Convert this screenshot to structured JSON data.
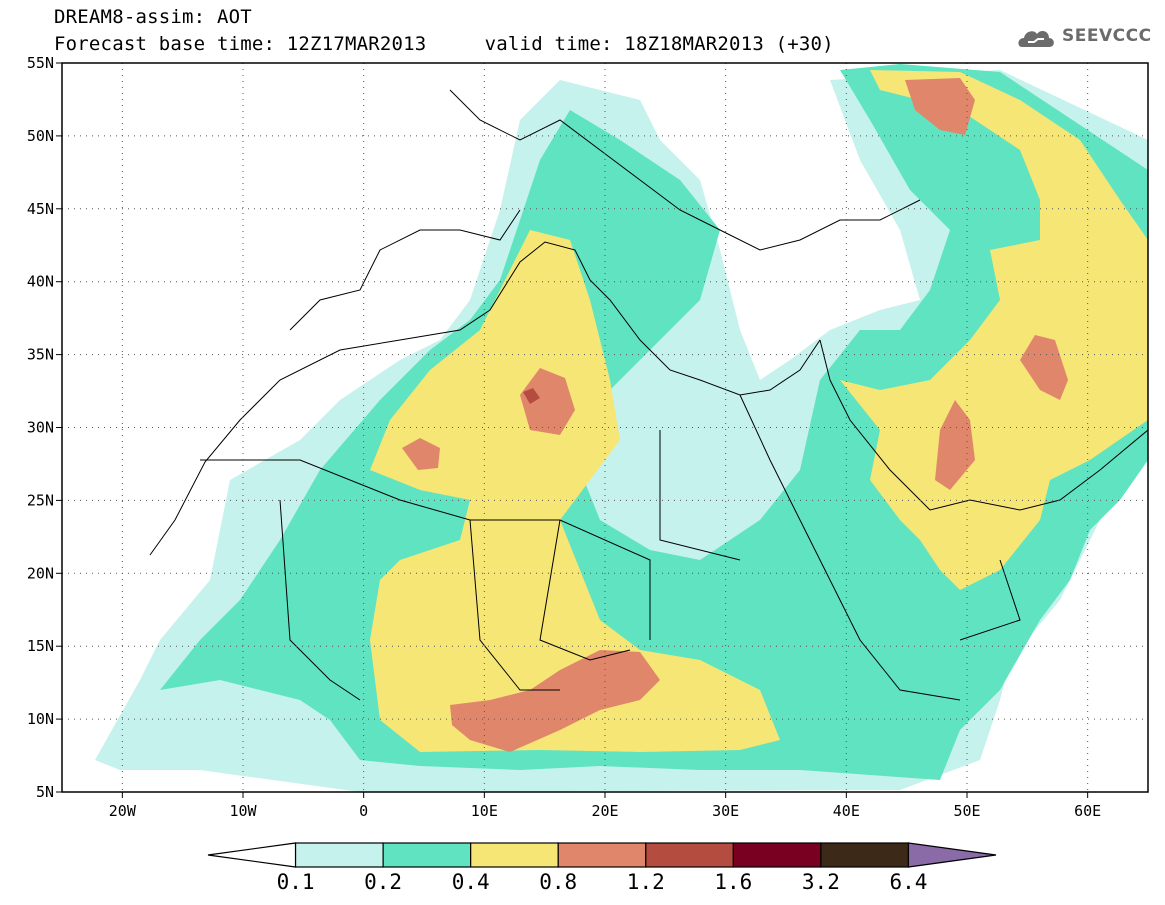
{
  "header": {
    "title_line1": "DREAM8-assim: AOT",
    "title_line2": "Forecast base time: 12Z17MAR2013     valid time: 18Z18MAR2013 (+30)",
    "logo_text": "SEEVCCC"
  },
  "map": {
    "lon_range": [
      -25,
      65
    ],
    "lat_range": [
      5,
      55
    ],
    "lon_tick_labels": [
      "20W",
      "10W",
      "0",
      "10E",
      "20E",
      "30E",
      "40E",
      "50E",
      "60E"
    ],
    "lat_tick_labels": [
      "5N",
      "10N",
      "15N",
      "20N",
      "25N",
      "30N",
      "35N",
      "40N",
      "45N",
      "50N",
      "55N"
    ],
    "gridlines": "dotted",
    "colors": {
      "aot_0.1_0.2": "#c5f2ec",
      "aot_0.2_0.4": "#5fe3c0",
      "aot_0.4_0.8": "#f5e676",
      "aot_0.8_1.2": "#e0866a",
      "aot_1.2_1.6": "#b44d3f"
    }
  },
  "colorbar": {
    "labels": [
      "0.1",
      "0.2",
      "0.4",
      "0.8",
      "1.2",
      "1.6",
      "3.2",
      "6.4"
    ],
    "colors": [
      "#ffffff",
      "#c5f2ec",
      "#5fe3c0",
      "#f5e676",
      "#e0866a",
      "#b44d3f",
      "#7a0022",
      "#3d2918",
      "#8b6aa8"
    ]
  }
}
